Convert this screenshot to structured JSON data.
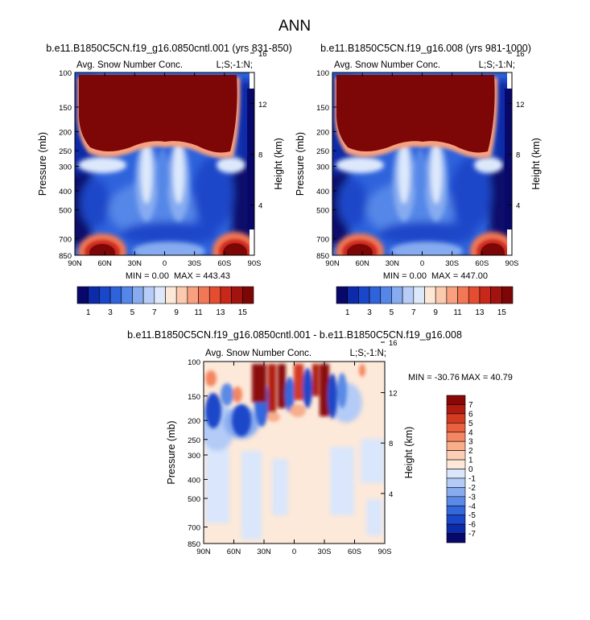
{
  "page": {
    "title": "ANN"
  },
  "colors": {
    "seq_colorbar": [
      "#08086b",
      "#0d2aa8",
      "#1a47c9",
      "#2f63dc",
      "#5587e8",
      "#86abf0",
      "#b7cdf7",
      "#dde8fb",
      "#fde8d8",
      "#fbc9ae",
      "#f8a07f",
      "#f27855",
      "#e54d30",
      "#c8281a",
      "#a1130e",
      "#7d0606"
    ],
    "diff_colorbar": [
      "#08086b",
      "#0d2aa8",
      "#1a47c9",
      "#3368dd",
      "#5a8ae6",
      "#88abef",
      "#b3cbf6",
      "#d9e6fb",
      "#fde9d9",
      "#fbcfb5",
      "#f8ad8b",
      "#f48661",
      "#e9613e",
      "#d23b22",
      "#b01b11",
      "#8a0707"
    ]
  },
  "chart_data": [
    {
      "type": "heatmap",
      "title": "b.e11.B1850C5CN.f19_g16.0850cntl.001 (yrs 831-850)",
      "left_label": "Avg. Snow Number Conc.",
      "right_label": "L;S;-1:N;",
      "xlabel": "",
      "ylabel": "Pressure (mb)",
      "y2label": "Height (km)",
      "x_ticks": [
        "90N",
        "60N",
        "30N",
        "0",
        "30S",
        "60S",
        "90S"
      ],
      "y_ticks": [
        "100",
        "150",
        "200",
        "250",
        "300",
        "400",
        "500",
        "700",
        "850"
      ],
      "y2_ticks": [
        "16",
        "12",
        "8",
        "4"
      ],
      "min_label": "MIN =   0.00",
      "max_label": "MAX = 443.43",
      "colorbar_labels": [
        "1",
        "3",
        "5",
        "7",
        "9",
        "11",
        "13",
        "15"
      ],
      "scale": "log-pressure"
    },
    {
      "type": "heatmap",
      "title": "b.e11.B1850C5CN.f19_g16.008 (yrs 981-1000)",
      "left_label": "Avg. Snow Number Conc.",
      "right_label": "L;S;-1:N;",
      "xlabel": "",
      "ylabel": "Pressure (mb)",
      "y2label": "Height (km)",
      "x_ticks": [
        "90N",
        "60N",
        "30N",
        "0",
        "30S",
        "60S",
        "90S"
      ],
      "y_ticks": [
        "100",
        "150",
        "200",
        "250",
        "300",
        "400",
        "500",
        "700",
        "850"
      ],
      "y2_ticks": [
        "16",
        "12",
        "8",
        "4"
      ],
      "min_label": "MIN =   0.00",
      "max_label": "MAX = 447.00",
      "colorbar_labels": [
        "1",
        "3",
        "5",
        "7",
        "9",
        "11",
        "13",
        "15"
      ],
      "scale": "log-pressure"
    },
    {
      "type": "heatmap",
      "title": "b.e11.B1850C5CN.f19_g16.0850cntl.001 - b.e11.B1850C5CN.f19_g16.008",
      "left_label": "Avg. Snow Number Conc.",
      "right_label": "L;S;-1:N;",
      "xlabel": "",
      "ylabel": "Pressure (mb)",
      "y2label": "Height (km)",
      "x_ticks": [
        "90N",
        "60N",
        "30N",
        "0",
        "30S",
        "60S",
        "90S"
      ],
      "y_ticks": [
        "100",
        "150",
        "200",
        "250",
        "300",
        "400",
        "500",
        "700",
        "850"
      ],
      "y2_ticks": [
        "16",
        "12",
        "8",
        "4"
      ],
      "min_label": "MIN = -30.76",
      "max_label": "MAX =  40.79",
      "colorbar_labels": [
        "7",
        "6",
        "5",
        "4",
        "3",
        "2",
        "1",
        "0",
        "-1",
        "-2",
        "-3",
        "-4",
        "-5",
        "-6",
        "-7"
      ],
      "scale": "log-pressure"
    }
  ]
}
